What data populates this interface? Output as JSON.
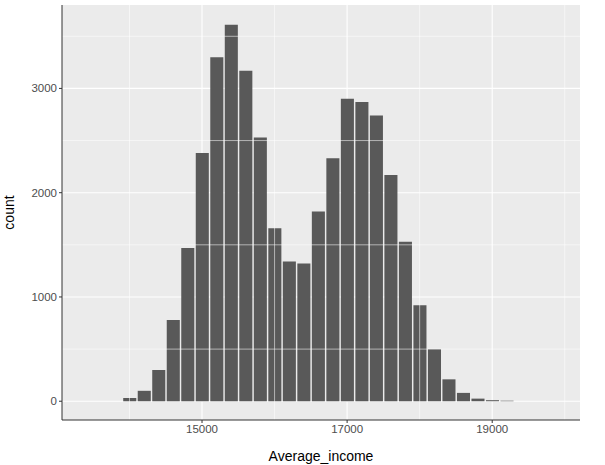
{
  "chart_data": {
    "type": "histogram",
    "x_label": "Average_income",
    "y_label": "count",
    "bins": [
      13900,
      14100,
      14300,
      14500,
      14700,
      14900,
      15100,
      15300,
      15500,
      15700,
      15900,
      16100,
      16300,
      16500,
      16700,
      16900,
      17100,
      17300,
      17500,
      17700,
      17900,
      18100,
      18300,
      18500,
      18700,
      18900,
      19100,
      19300
    ],
    "values": [
      30,
      100,
      300,
      780,
      1470,
      2380,
      3300,
      3610,
      3170,
      2530,
      1660,
      1340,
      1320,
      1820,
      2330,
      2900,
      2870,
      2740,
      2170,
      1530,
      920,
      500,
      210,
      80,
      25,
      10,
      5
    ],
    "color": "#595959",
    "xlim": [
      13070,
      20210
    ],
    "ylim": [
      -180,
      3800
    ],
    "xticks": [
      15000,
      17000,
      19000
    ],
    "yticks": [
      0,
      1000,
      2000,
      3000
    ],
    "grid": true
  }
}
